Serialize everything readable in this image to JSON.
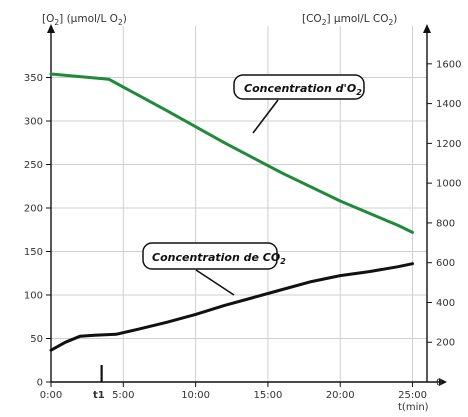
{
  "chart_data": {
    "type": "line",
    "title": "",
    "x_axis": {
      "ticks": [
        "0:00",
        "5:00",
        "10:00",
        "15:00",
        "20:00",
        "25:00"
      ],
      "tick_values": [
        0,
        5,
        10,
        15,
        20,
        25
      ],
      "range": [
        0,
        26
      ],
      "unit_label": "t(min)",
      "marker": {
        "label": "t1",
        "x": 3.5
      }
    },
    "y_left": {
      "label_main": "[O",
      "label_sub": "2",
      "label_main2": "]  (µmol/L O",
      "label_sub2": "2",
      "label_end": ")",
      "range": [
        0,
        400
      ],
      "ticks": [
        0,
        50,
        100,
        150,
        200,
        250,
        300,
        350
      ]
    },
    "y_right": {
      "label_main": "[CO",
      "label_sub": "2",
      "label_main2": "]  µmol/L CO",
      "label_sub2": "2",
      "label_end": ")",
      "range": [
        0,
        1750
      ],
      "ticks": [
        0,
        200,
        400,
        600,
        800,
        1000,
        1200,
        1400,
        1600
      ]
    },
    "grid": true,
    "series": [
      {
        "name_main": "Concentration d'O",
        "name_sub": "2",
        "axis": "left",
        "color": "#1f8a3a",
        "x": [
          0,
          2,
          4,
          8,
          12,
          16,
          20,
          24,
          25
        ],
        "y": [
          354,
          351,
          348,
          312,
          275,
          240,
          208,
          180,
          172
        ]
      },
      {
        "name_main": "Concentration de CO",
        "name_sub": "2",
        "axis": "right",
        "color": "#111111",
        "x": [
          0,
          1,
          2,
          3,
          4.5,
          6,
          8,
          10,
          12,
          14,
          16,
          18,
          20,
          22,
          24,
          25
        ],
        "y": [
          160,
          200,
          230,
          235,
          240,
          265,
          300,
          340,
          385,
          425,
          465,
          505,
          535,
          555,
          580,
          595
        ]
      }
    ]
  }
}
